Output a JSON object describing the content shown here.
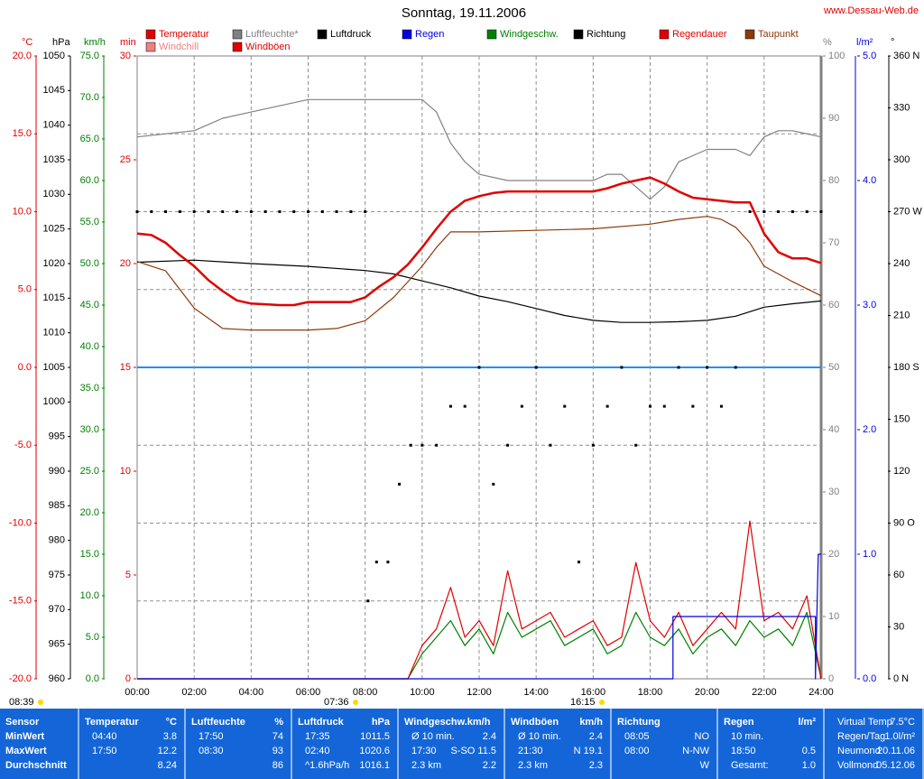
{
  "chart_data": {
    "type": "line",
    "title": "Sonntag, 19.11.2006",
    "source": "www.Dessau-Web.de",
    "grid": true,
    "legend": [
      {
        "name": "Temperatur",
        "color": "#e00000"
      },
      {
        "name": "Luftfeuchte*",
        "color": "#808080"
      },
      {
        "name": "Luftdruck",
        "color": "#000000"
      },
      {
        "name": "Regen",
        "color": "#0000e0"
      },
      {
        "name": "Windgeschw.",
        "color": "#008000"
      },
      {
        "name": "Richtung",
        "color": "#000000"
      },
      {
        "name": "Regendauer",
        "color": "#e00000"
      },
      {
        "name": "Taupunkt",
        "color": "#8b3a0a"
      },
      {
        "name": "Windchill",
        "color": "#f08080"
      },
      {
        "name": "Windböen",
        "color": "#e00000"
      }
    ],
    "xlim": [
      0,
      24
    ],
    "xticks": [
      {
        "value": 0,
        "label": "00:00"
      },
      {
        "value": 2,
        "label": "02:00"
      },
      {
        "value": 4,
        "label": "04:00"
      },
      {
        "value": 6,
        "label": "06:00"
      },
      {
        "value": 8,
        "label": "08:00"
      },
      {
        "value": 10,
        "label": "10:00"
      },
      {
        "value": 12,
        "label": "12:00"
      },
      {
        "value": 14,
        "label": "14:00"
      },
      {
        "value": 16,
        "label": "16:00"
      },
      {
        "value": 18,
        "label": "18:00"
      },
      {
        "value": 20,
        "label": "20:00"
      },
      {
        "value": 22,
        "label": "22:00"
      },
      {
        "value": 24,
        "label": "24:00"
      }
    ],
    "axes": [
      {
        "label": "°C",
        "color": "#e00000",
        "lim": [
          -20,
          20
        ],
        "ticks": [
          {
            "value": 20,
            "label": "20.0"
          },
          {
            "value": 15,
            "label": "15.0"
          },
          {
            "value": 10,
            "label": "10.0"
          },
          {
            "value": 5,
            "label": "5.0"
          },
          {
            "value": 0,
            "label": "0.0"
          },
          {
            "value": -5,
            "label": "-5.0"
          },
          {
            "value": -10,
            "label": "-10.0"
          },
          {
            "value": -15,
            "label": "-15.0"
          },
          {
            "value": -20,
            "label": "-20.0"
          }
        ]
      },
      {
        "label": "hPa",
        "color": "#000000",
        "lim": [
          960,
          1050
        ],
        "ticks": [
          960,
          965,
          970,
          975,
          980,
          985,
          990,
          995,
          1000,
          1005,
          1010,
          1015,
          1020,
          1025,
          1030,
          1035,
          1040,
          1045,
          1050
        ]
      },
      {
        "label": "km/h",
        "color": "#008000",
        "lim": [
          0,
          75
        ],
        "ticks": [
          {
            "value": 0,
            "label": "0.0"
          },
          {
            "value": 5,
            "label": "5.0"
          },
          {
            "value": 10,
            "label": "10.0"
          },
          {
            "value": 15,
            "label": "15.0"
          },
          {
            "value": 20,
            "label": "20.0"
          },
          {
            "value": 25,
            "label": "25.0"
          },
          {
            "value": 30,
            "label": "30.0"
          },
          {
            "value": 35,
            "label": "35.0"
          },
          {
            "value": 40,
            "label": "40.0"
          },
          {
            "value": 45,
            "label": "45.0"
          },
          {
            "value": 50,
            "label": "50.0"
          },
          {
            "value": 55,
            "label": "55.0"
          },
          {
            "value": 60,
            "label": "60.0"
          },
          {
            "value": 65,
            "label": "65.0"
          },
          {
            "value": 70,
            "label": "70.0"
          },
          {
            "value": 75,
            "label": "75.0"
          }
        ]
      },
      {
        "label": "min",
        "color": "#e00000",
        "lim": [
          0,
          30
        ],
        "ticks": [
          0,
          5,
          10,
          15,
          20,
          25,
          30
        ]
      },
      {
        "label": "%",
        "color": "#808080",
        "lim": [
          0,
          100
        ],
        "ticks": [
          0,
          10,
          20,
          30,
          40,
          50,
          60,
          70,
          80,
          90,
          100
        ]
      },
      {
        "label": "l/m²",
        "color": "#0000e0",
        "lim": [
          0,
          5
        ],
        "ticks": [
          {
            "value": 0,
            "label": "0.0"
          },
          {
            "value": 1,
            "label": "1.0"
          },
          {
            "value": 2,
            "label": "2.0"
          },
          {
            "value": 3,
            "label": "3.0"
          },
          {
            "value": 4,
            "label": "4.0"
          },
          {
            "value": 5,
            "label": "5.0"
          }
        ]
      },
      {
        "label": "°",
        "color": "#000000",
        "lim": [
          0,
          360
        ],
        "ticks": [
          {
            "value": 0,
            "label": "0 N"
          },
          30,
          60,
          {
            "value": 90,
            "label": "90 O"
          },
          120,
          150,
          {
            "value": 180,
            "label": "180 S"
          },
          210,
          240,
          {
            "value": 270,
            "label": "270 W"
          },
          300,
          330,
          {
            "value": 360,
            "label": "360 N"
          }
        ]
      }
    ],
    "series": [
      {
        "name": "Luftfeuchte*",
        "color": "#808080",
        "axis": 4,
        "style": "line",
        "x": [
          0,
          2,
          3,
          4,
          5,
          6,
          7,
          8,
          9,
          10,
          10.5,
          11,
          11.5,
          12,
          13,
          14,
          15,
          16,
          16.5,
          17,
          17.5,
          18,
          18.5,
          19,
          20,
          21,
          21.5,
          22,
          22.5,
          23,
          24
        ],
        "values": [
          87,
          88,
          90,
          91,
          92,
          93,
          93,
          93,
          93,
          93,
          91,
          86,
          83,
          81,
          80,
          80,
          80,
          80,
          81,
          81,
          79,
          77,
          79,
          83,
          85,
          85,
          84,
          87,
          88,
          88,
          87
        ]
      },
      {
        "name": "Luftdruck",
        "color": "#000000",
        "axis": 1,
        "style": "line",
        "x": [
          0,
          2,
          4,
          6,
          8,
          9,
          10,
          11,
          12,
          13,
          14,
          15,
          16,
          17,
          18,
          19,
          20,
          21,
          22,
          23,
          24
        ],
        "values": [
          1020.2,
          1020.5,
          1020.0,
          1019.6,
          1019.0,
          1018.5,
          1017.5,
          1016.5,
          1015.3,
          1014.5,
          1013.5,
          1012.5,
          1011.8,
          1011.5,
          1011.5,
          1011.6,
          1011.8,
          1012.4,
          1013.7,
          1014.2,
          1014.6
        ]
      },
      {
        "name": "Taupunkt",
        "color": "#8b3a0a",
        "axis": 0,
        "style": "line",
        "x": [
          0,
          1,
          2,
          3,
          4,
          6,
          7,
          8,
          9,
          10,
          10.5,
          11,
          12,
          14,
          16,
          18,
          19,
          20,
          20.5,
          21,
          21.5,
          22,
          23,
          24
        ],
        "values": [
          6.8,
          6.2,
          3.8,
          2.5,
          2.4,
          2.4,
          2.5,
          3.0,
          4.5,
          6.5,
          7.7,
          8.7,
          8.7,
          8.8,
          8.9,
          9.2,
          9.5,
          9.7,
          9.5,
          9.0,
          8.0,
          6.5,
          5.5,
          4.6
        ]
      },
      {
        "name": "Windgeschw.",
        "color": "#008000",
        "axis": 2,
        "style": "line",
        "x": [
          0,
          0.5,
          1,
          1.5,
          2,
          2.5,
          3,
          3.5,
          4,
          4.5,
          5,
          5.5,
          6,
          6.5,
          7,
          7.5,
          8,
          8.5,
          9,
          9.5,
          10,
          10.5,
          11,
          11.5,
          12,
          12.5,
          13,
          13.5,
          14,
          14.5,
          15,
          15.5,
          16,
          16.5,
          17,
          17.5,
          18,
          18.5,
          19,
          19.5,
          20,
          20.5,
          21,
          21.5,
          22,
          22.5,
          23,
          23.5,
          24
        ],
        "values": [
          0,
          0,
          0,
          0,
          0,
          0,
          0,
          0,
          0,
          0,
          0,
          0,
          0,
          0,
          0,
          0,
          0,
          0,
          0,
          0,
          3,
          5,
          7,
          4,
          6,
          3,
          8,
          5,
          6,
          7,
          4,
          5,
          6,
          3,
          4,
          8,
          5,
          4,
          6,
          3,
          5,
          6,
          4,
          7,
          5,
          6,
          4,
          8,
          0
        ]
      },
      {
        "name": "Windböen",
        "color": "#e00000",
        "axis": 2,
        "style": "line",
        "x": [
          0,
          0.5,
          1,
          1.5,
          2,
          2.5,
          3,
          3.5,
          4,
          4.5,
          5,
          5.5,
          6,
          6.5,
          7,
          7.5,
          8,
          8.5,
          9,
          9.5,
          10,
          10.5,
          11,
          11.5,
          12,
          12.5,
          13,
          13.5,
          14,
          14.5,
          15,
          15.5,
          16,
          16.5,
          17,
          17.5,
          18,
          18.5,
          19,
          19.5,
          20,
          20.5,
          21,
          21.5,
          22,
          22.5,
          23,
          23.5,
          24
        ],
        "values": [
          0,
          0,
          0,
          0,
          0,
          0,
          0,
          0,
          0,
          0,
          0,
          0,
          0,
          0,
          0,
          0,
          0,
          0,
          0,
          0,
          4,
          6,
          11,
          5,
          7,
          4,
          13,
          6,
          7,
          8,
          5,
          6,
          7,
          4,
          5,
          14,
          7,
          5,
          8,
          4,
          6,
          8,
          6,
          19,
          7,
          8,
          6,
          10,
          0
        ]
      },
      {
        "name": "Regen",
        "color": "#0000e0",
        "axis": 5,
        "style": "line",
        "x": [
          0,
          18.8,
          18.8,
          23.8,
          23.8,
          23.9,
          24
        ],
        "values": [
          0,
          0,
          0.5,
          0.5,
          0,
          1.0,
          1.0
        ]
      },
      {
        "name": "Richtung",
        "color": "#000000",
        "axis": 6,
        "style": "dots",
        "x": [
          0,
          0.5,
          1,
          1.5,
          2,
          2.5,
          3,
          3.5,
          4,
          4.5,
          5,
          5.5,
          6,
          6.5,
          7,
          7.5,
          8,
          8.1,
          8.4,
          8.8,
          9.2,
          9.6,
          10,
          10.5,
          11,
          11.5,
          12,
          12.5,
          13,
          13.5,
          14,
          14.5,
          15,
          15.5,
          16,
          16.5,
          17,
          17.5,
          18,
          18.5,
          19,
          19.5,
          20,
          20.5,
          21,
          21.5,
          22,
          22.5,
          23,
          23.5,
          24
        ],
        "values": [
          270,
          270,
          270,
          270,
          270,
          270,
          270,
          270,
          270,
          270,
          270,
          270,
          270,
          270,
          270,
          270,
          270,
          45,
          67.5,
          67.5,
          112.5,
          135,
          135,
          135,
          157.5,
          157.5,
          180,
          112.5,
          135,
          157.5,
          180,
          135,
          157.5,
          67.5,
          135,
          157.5,
          180,
          135,
          157.5,
          157.5,
          180,
          157.5,
          180,
          157.5,
          180,
          270,
          270,
          270,
          270,
          270,
          270
        ]
      },
      {
        "name": "Temperatur",
        "color": "#e00000",
        "axis": 0,
        "style": "thick",
        "x": [
          0,
          0.5,
          1,
          1.5,
          2,
          2.5,
          3,
          3.5,
          4,
          5,
          5.5,
          6,
          7,
          7.5,
          8,
          8.5,
          9,
          9.5,
          10,
          10.5,
          11,
          11.5,
          12,
          12.5,
          13,
          14,
          15,
          16,
          16.5,
          17,
          17.5,
          18,
          18.5,
          19,
          19.5,
          20,
          21,
          21.5,
          22,
          22.5,
          23,
          23.5,
          24
        ],
        "values": [
          8.6,
          8.5,
          8.0,
          7.2,
          6.5,
          5.6,
          4.9,
          4.3,
          4.1,
          4.0,
          4.0,
          4.2,
          4.2,
          4.2,
          4.5,
          5.2,
          5.8,
          6.6,
          7.7,
          8.9,
          10.0,
          10.7,
          11.0,
          11.2,
          11.3,
          11.3,
          11.3,
          11.3,
          11.5,
          11.8,
          12.0,
          12.2,
          11.8,
          11.3,
          10.9,
          10.8,
          10.6,
          10.6,
          8.6,
          7.4,
          7.0,
          7.0,
          6.7
        ]
      }
    ],
    "annotations": [
      "08:39",
      "07:36",
      "16:15"
    ]
  },
  "table": {
    "columns": [
      {
        "header": [
          "Sensor"
        ],
        "rows": [
          [
            "MinWert"
          ],
          [
            "MaxWert"
          ],
          [
            "Durchschnitt"
          ]
        ]
      },
      {
        "header": [
          "Temperatur",
          "°C"
        ],
        "rows": [
          [
            "04:40",
            "3.8"
          ],
          [
            "17:50",
            "12.2"
          ],
          [
            null,
            "8.24"
          ]
        ]
      },
      {
        "header": [
          "Luftfeuchte",
          "%"
        ],
        "rows": [
          [
            "17:50",
            "74"
          ],
          [
            "08:30",
            "93"
          ],
          [
            null,
            "86"
          ]
        ]
      },
      {
        "header": [
          "Luftdruck",
          "hPa"
        ],
        "rows": [
          [
            "17:35",
            "1011.5"
          ],
          [
            "02:40",
            "1020.6"
          ],
          [
            "^1.6hPa/h",
            "1016.1"
          ]
        ]
      },
      {
        "header": [
          "Windgeschw.km/h"
        ],
        "rows": [
          [
            "Ø 10 min.",
            "2.4"
          ],
          [
            "17:30",
            "S-SO 11.5"
          ],
          [
            "2.3 km",
            "2.2"
          ]
        ]
      },
      {
        "header": [
          "Windböen",
          "km/h"
        ],
        "rows": [
          [
            "Ø 10 min.",
            "2.4"
          ],
          [
            "21:30",
            "N 19.1"
          ],
          [
            "2.3 km",
            "2.3"
          ]
        ]
      },
      {
        "header": [
          "Richtung"
        ],
        "rows": [
          [
            "08:05",
            "NO"
          ],
          [
            "08:00",
            "N-NW"
          ],
          [
            null,
            "W"
          ]
        ]
      },
      {
        "header": [
          "Regen",
          "l/m²"
        ],
        "rows": [
          [
            "10 min."
          ],
          [
            "18:50",
            "0.5"
          ],
          [
            "Gesamt:",
            "1.0"
          ]
        ]
      },
      {
        "rows": [
          [
            "Virtual Temp",
            "7.5°C"
          ],
          [
            "Regen/Tag",
            "1.0l/m²"
          ],
          [
            "Neumond",
            "20.11.06"
          ],
          [
            "Vollmond",
            "05.12.06"
          ]
        ]
      }
    ]
  }
}
